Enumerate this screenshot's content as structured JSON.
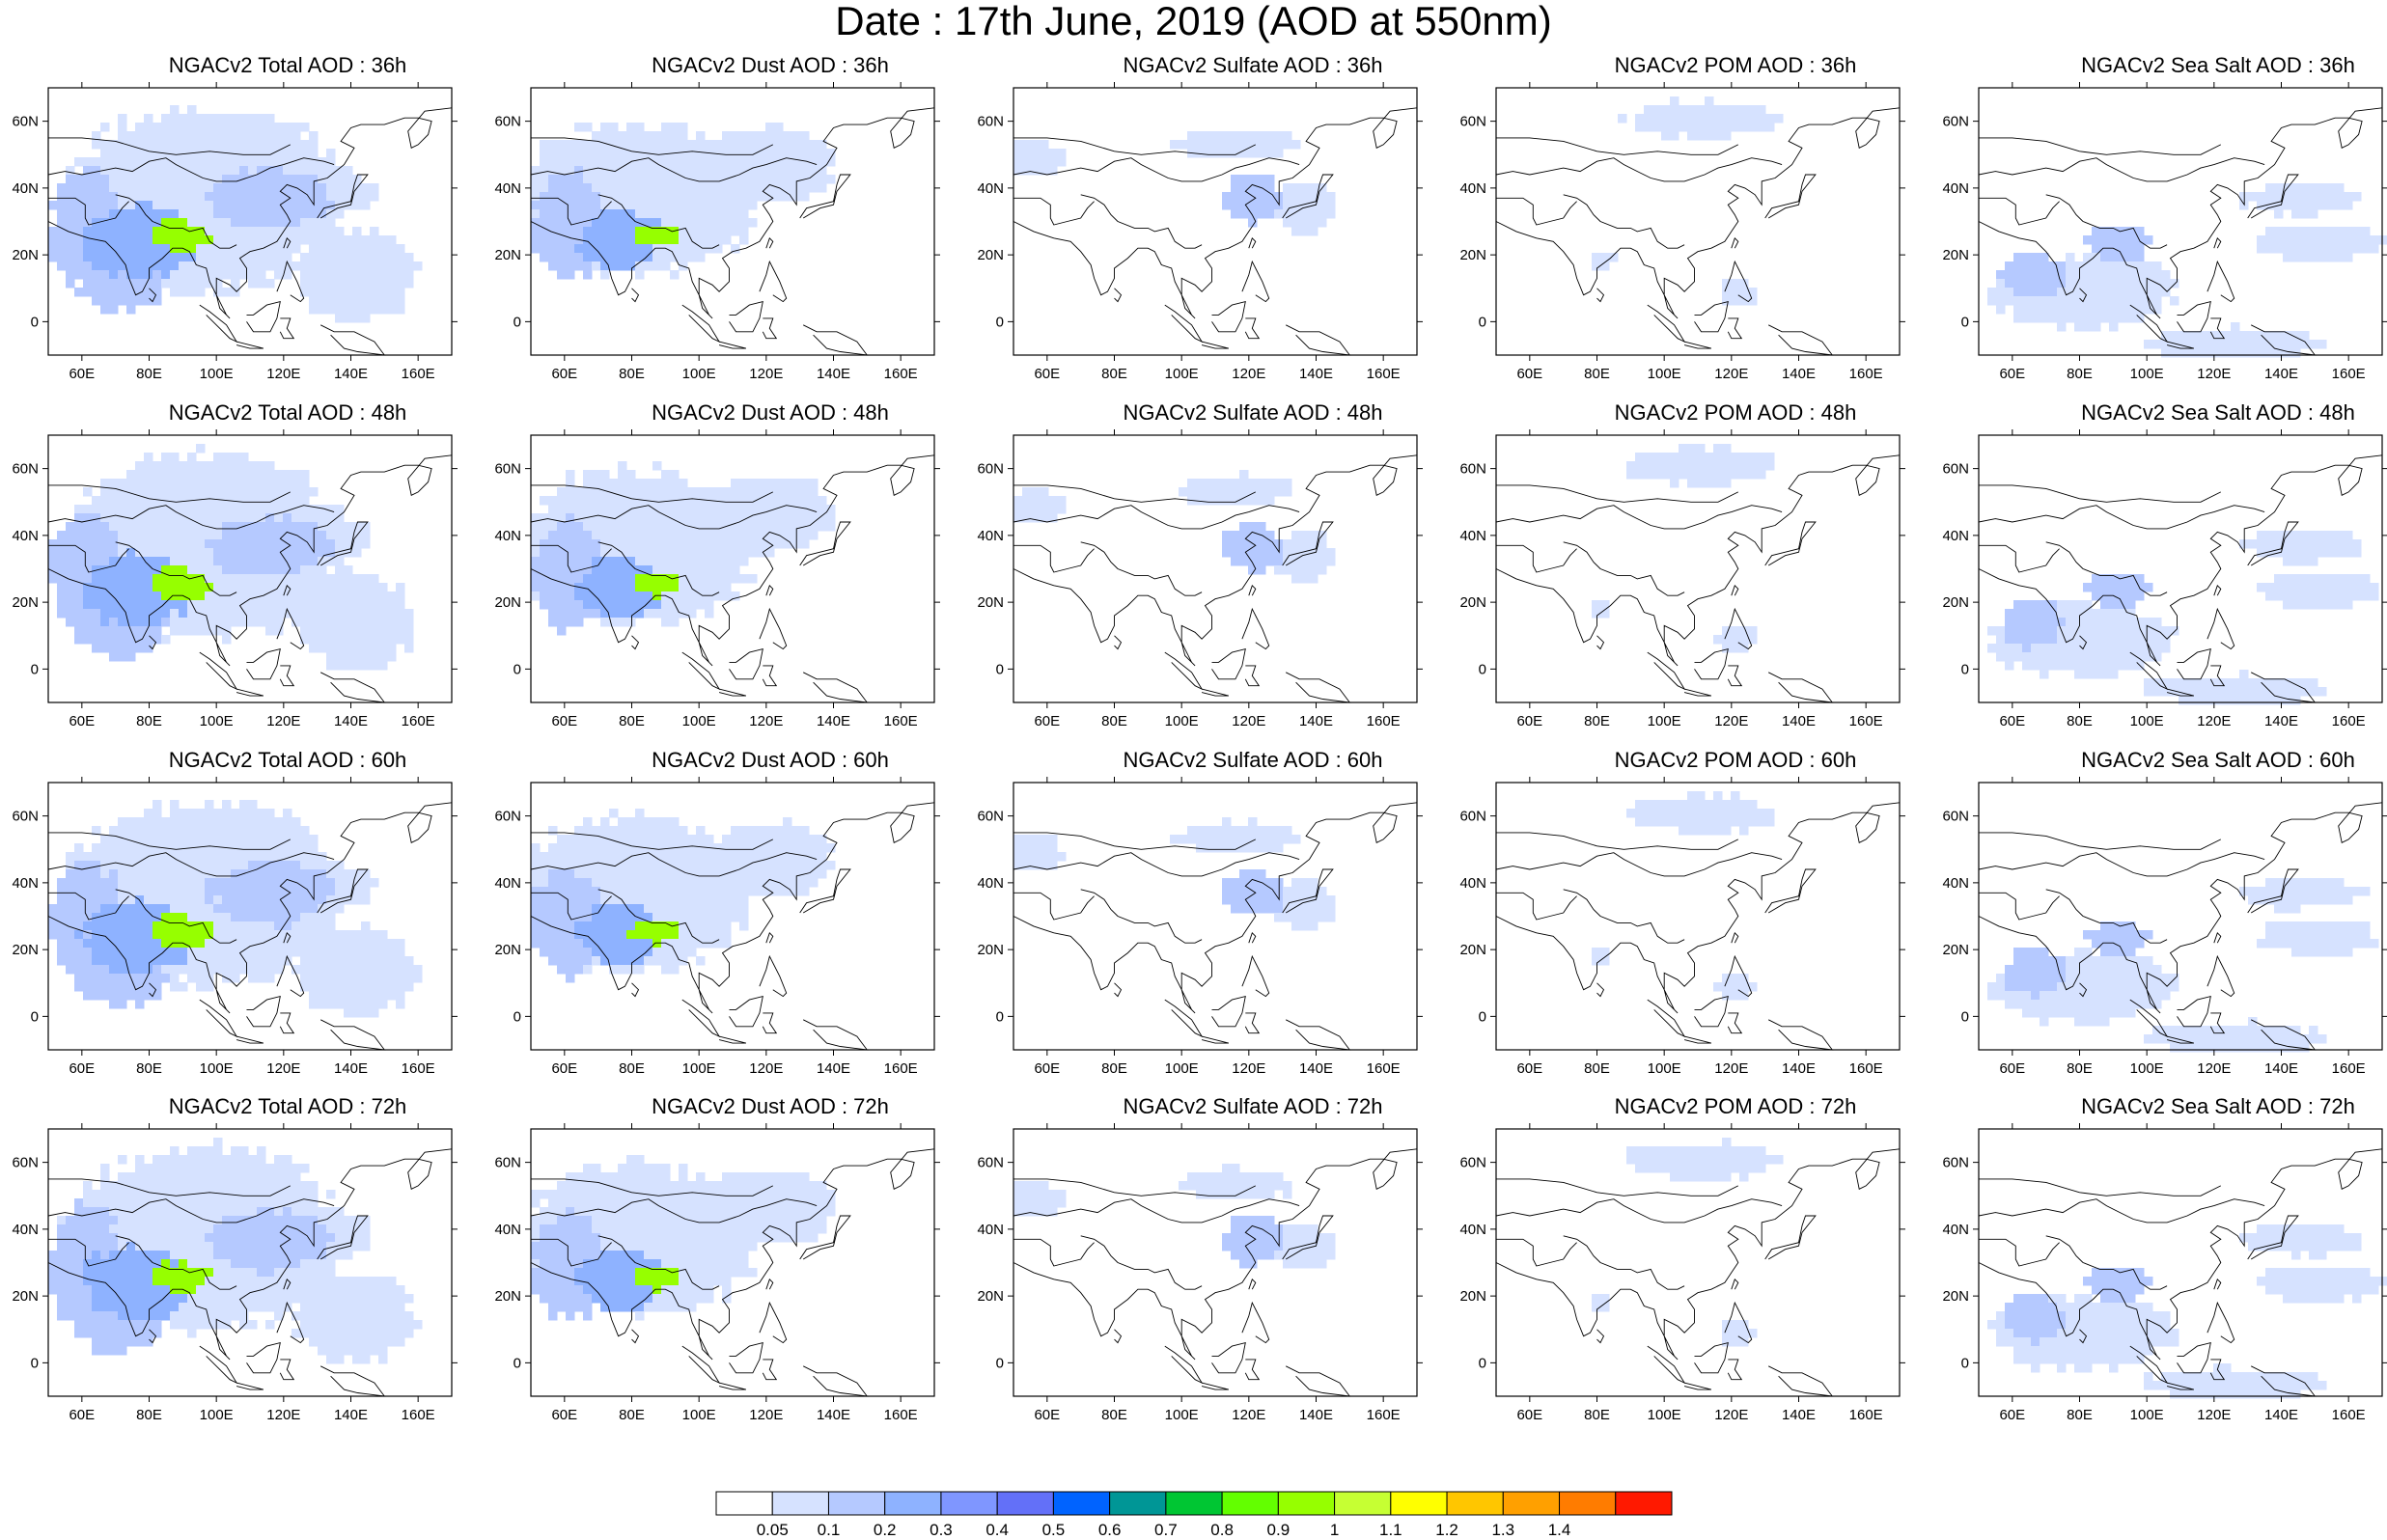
{
  "figure": {
    "title": "Date : 17th June, 2019 (AOD at 550nm)"
  },
  "map_axes": {
    "lon_ticks": [
      "60E",
      "80E",
      "100E",
      "120E",
      "140E",
      "160E"
    ],
    "lat_ticks": [
      "60N",
      "40N",
      "20N",
      "0"
    ]
  },
  "colorbar": {
    "labels": [
      "0.05",
      "0.1",
      "0.2",
      "0.3",
      "0.4",
      "0.5",
      "0.6",
      "0.7",
      "0.8",
      "0.9",
      "1",
      "1.1",
      "1.2",
      "1.3",
      "1.4"
    ],
    "colors": [
      "#ffffff",
      "#d6e2ff",
      "#b5c9ff",
      "#8eb2ff",
      "#7f96ff",
      "#6370f8",
      "#0063ff",
      "#009696",
      "#00c633",
      "#63ff00",
      "#96ff00",
      "#c6ff33",
      "#ffff00",
      "#ffc600",
      "#ffa000",
      "#ff7c00",
      "#ff1900"
    ]
  },
  "panel_titles": [
    [
      "NGACv2 Total AOD : 36h",
      "NGACv2 Dust AOD : 36h",
      "NGACv2 Sulfate AOD : 36h",
      "NGACv2 POM AOD : 36h",
      "NGACv2 Sea Salt AOD : 36h"
    ],
    [
      "NGACv2 Total AOD : 48h",
      "NGACv2 Dust AOD : 48h",
      "NGACv2 Sulfate AOD : 48h",
      "NGACv2 POM AOD : 48h",
      "NGACv2 Sea Salt AOD : 48h"
    ],
    [
      "NGACv2 Total AOD : 60h",
      "NGACv2 Dust AOD : 60h",
      "NGACv2 Sulfate AOD : 60h",
      "NGACv2 POM AOD : 60h",
      "NGACv2 Sea Salt AOD : 60h"
    ],
    [
      "NGACv2 Total AOD : 72h",
      "NGACv2 Dust AOD : 72h",
      "NGACv2 Sulfate AOD : 72h",
      "NGACv2 POM AOD : 72h",
      "NGACv2 Sea Salt  AOD : 72h"
    ]
  ],
  "map_extent": {
    "lon": [
      50,
      170
    ],
    "lat": [
      -10,
      70
    ]
  }
}
